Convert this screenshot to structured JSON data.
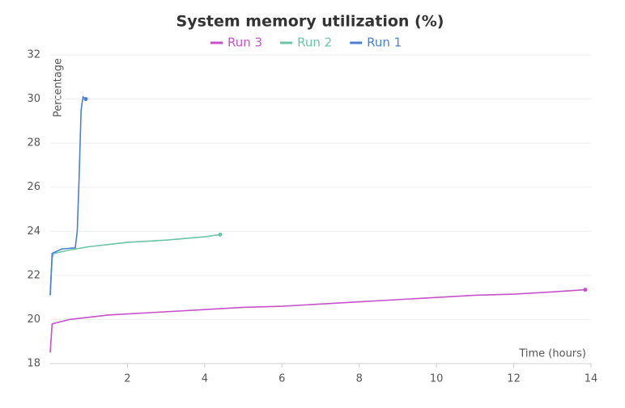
{
  "chart_data": {
    "type": "line",
    "title": "System memory utilization (%)",
    "x_label": "Time (hours)",
    "y_label": "Percentage",
    "xlim": [
      0,
      14
    ],
    "xticks": [
      2,
      4,
      6,
      8,
      10,
      12,
      14
    ],
    "ylim": [
      18,
      32
    ],
    "yticks": [
      18,
      20,
      22,
      24,
      26,
      28,
      30,
      32
    ],
    "grid": true,
    "series": [
      {
        "name": "Run 3",
        "color": "#c452c8",
        "x": [
          0,
          0.05,
          0.5,
          1,
          1.5,
          2,
          3,
          4,
          5,
          6,
          7,
          8,
          9,
          10,
          11,
          12,
          13,
          13.85
        ],
        "values": [
          18.5,
          19.8,
          20.0,
          20.1,
          20.2,
          20.25,
          20.35,
          20.45,
          20.55,
          20.6,
          20.7,
          20.8,
          20.9,
          21.0,
          21.1,
          21.15,
          21.25,
          21.35
        ]
      },
      {
        "name": "Run 2",
        "color": "#6cc4a6",
        "x": [
          0,
          0.05,
          0.1,
          0.5,
          1,
          2,
          3,
          4,
          4.4
        ],
        "values": [
          21.1,
          22.8,
          23.0,
          23.15,
          23.3,
          23.5,
          23.6,
          23.75,
          23.85
        ]
      },
      {
        "name": "Run 1",
        "color": "#4a7fd4",
        "x": [
          0,
          0.05,
          0.3,
          0.65,
          0.7,
          0.75,
          0.8,
          0.85,
          0.92
        ],
        "values": [
          21.1,
          23.0,
          23.2,
          23.25,
          24.0,
          26.5,
          29.5,
          30.1,
          30.0
        ]
      }
    ]
  }
}
